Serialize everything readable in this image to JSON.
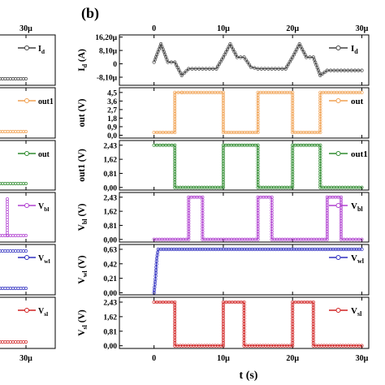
{
  "panel_label": "(b)",
  "colors": {
    "Id": "#404040",
    "out": "#f0a050",
    "out1": "#2e8b2e",
    "Vbl": "#b040d0",
    "Vwl": "#3030c0",
    "Vsl": "#d02020"
  },
  "left_panel": {
    "x_tick": "30μ",
    "legends": [
      "I",
      "out1",
      "out",
      "V",
      "V",
      "V"
    ],
    "legend_subs": [
      "d",
      "",
      "",
      "bl",
      "wl",
      "sl"
    ]
  },
  "chart_data": {
    "type": "line",
    "x_label": "t (s)",
    "x_ticks": [
      "0",
      "10μ",
      "20μ",
      "30μ"
    ],
    "x_range": [
      -5e-06,
      3.1e-05
    ],
    "panels": [
      {
        "key": "Id",
        "ylabel_main": "I",
        "ylabel_sub": "d",
        "ylabel_tail": " (A)",
        "legend": "I",
        "legend_sub": "d",
        "ylim": [
          -1.3e-05,
          1.75e-05
        ],
        "yticks": [
          1.62e-05,
          8.1e-06,
          0,
          -8.1e-06
        ],
        "ytick_labels": [
          "16,20μ",
          "8,10μ",
          "0",
          "-8,10μ"
        ],
        "x": [
          0,
          1e-06,
          2e-06,
          3e-06,
          4e-06,
          5e-06,
          6e-06,
          7e-06,
          8e-06,
          9e-06,
          1e-05,
          1.1e-05,
          1.2e-05,
          1.3e-05,
          1.4e-05,
          1.5e-05,
          1.6e-05,
          1.7e-05,
          1.8e-05,
          1.9e-05,
          2e-05,
          2.1e-05,
          2.2e-05,
          2.3e-05,
          2.4e-05,
          2.5e-05,
          2.6e-05,
          2.7e-05,
          2.8e-05,
          2.9e-05,
          3e-05
        ],
        "y": [
          1e-06,
          1.2e-05,
          1e-06,
          1e-06,
          -7e-06,
          -3e-06,
          -3e-06,
          -3e-06,
          -3e-06,
          -3e-06,
          4e-06,
          1.2e-05,
          4e-06,
          4e-06,
          -2e-06,
          -3e-06,
          -3e-06,
          -3e-06,
          -3e-06,
          -3e-06,
          4e-06,
          1.2e-05,
          4e-06,
          4e-06,
          -7e-06,
          -4e-06,
          -4e-06,
          -4e-06,
          -4e-06,
          -4e-06,
          -4e-06
        ]
      },
      {
        "key": "out",
        "ylabel_main": "out",
        "ylabel_sub": "",
        "ylabel_tail": " (V)",
        "legend": "out",
        "legend_sub": "",
        "ylim": [
          -0.3,
          5
        ],
        "yticks": [
          4.5,
          3.6,
          2.7,
          1.8,
          0.9,
          0
        ],
        "ytick_labels": [
          "4,5",
          "3,6",
          "2,7",
          "1,8",
          "0,9",
          "0,0"
        ],
        "x": [
          0,
          3e-06,
          3e-06,
          4e-06,
          4e-06,
          1e-05,
          1e-05,
          1.5e-05,
          1.5e-05,
          2e-05,
          2e-05,
          2.4e-05,
          2.4e-05,
          3e-05
        ],
        "y": [
          0.3,
          0.3,
          4.5,
          4.5,
          4.5,
          4.5,
          0.3,
          0.3,
          4.5,
          4.5,
          0.3,
          0.3,
          4.5,
          4.5
        ]
      },
      {
        "key": "out1",
        "ylabel_main": "out1",
        "ylabel_sub": "",
        "ylabel_tail": " (V)",
        "legend": "out1",
        "legend_sub": "",
        "ylim": [
          -0.15,
          2.7
        ],
        "yticks": [
          2.43,
          1.62,
          0.81,
          0
        ],
        "ytick_labels": [
          "2,43",
          "1,62",
          "0,81",
          "0,00"
        ],
        "x": [
          0,
          3e-06,
          3e-06,
          1e-05,
          1e-05,
          1.5e-05,
          1.5e-05,
          2e-05,
          2e-05,
          2.4e-05,
          2.4e-05,
          3e-05
        ],
        "y": [
          2.43,
          2.43,
          0,
          0,
          2.43,
          2.43,
          0,
          0,
          2.43,
          2.43,
          0,
          0
        ]
      },
      {
        "key": "Vbl",
        "ylabel_main": "V",
        "ylabel_sub": "bl",
        "ylabel_tail": " (V)",
        "legend": "V",
        "legend_sub": "bl",
        "ylim": [
          -0.15,
          2.7
        ],
        "yticks": [
          2.43,
          1.62,
          0.81,
          0
        ],
        "ytick_labels": [
          "2,43",
          "1,62",
          "0,81",
          "0,00"
        ],
        "x": [
          0,
          5e-06,
          5e-06,
          7e-06,
          7e-06,
          1.5e-05,
          1.5e-05,
          1.7e-05,
          1.7e-05,
          2.5e-05,
          2.5e-05,
          2.7e-05,
          2.7e-05,
          3e-05
        ],
        "y": [
          0,
          0,
          2.43,
          2.43,
          0,
          0,
          2.43,
          2.43,
          0,
          0,
          2.43,
          2.43,
          0,
          0
        ]
      },
      {
        "key": "Vwl",
        "ylabel_main": "V",
        "ylabel_sub": "wl",
        "ylabel_tail": " (V)",
        "legend": "V",
        "legend_sub": "wl",
        "ylim": [
          -0.03,
          0.7
        ],
        "yticks": [
          0.63,
          0.42,
          0.21,
          0
        ],
        "ytick_labels": [
          "0,63",
          "0,42",
          "0,21",
          "0,00"
        ],
        "x": [
          0,
          2e-07,
          4e-07,
          6e-07,
          1e-06,
          3e-05
        ],
        "y": [
          0,
          0.2,
          0.5,
          0.63,
          0.63,
          0.63
        ]
      },
      {
        "key": "Vsl",
        "ylabel_main": "V",
        "ylabel_sub": "sl",
        "ylabel_tail": " (V)",
        "legend": "V",
        "legend_sub": "sl",
        "ylim": [
          -0.15,
          2.7
        ],
        "yticks": [
          2.43,
          1.62,
          0.81,
          0
        ],
        "ytick_labels": [
          "2,43",
          "1,62",
          "0,81",
          "0,00"
        ],
        "x": [
          0,
          3e-06,
          3e-06,
          1e-05,
          1e-05,
          1.3e-05,
          1.3e-05,
          2e-05,
          2e-05,
          2.3e-05,
          2.3e-05,
          3e-05
        ],
        "y": [
          2.43,
          2.43,
          0,
          0,
          2.43,
          2.43,
          0,
          0,
          2.43,
          2.43,
          0,
          0
        ]
      }
    ]
  }
}
